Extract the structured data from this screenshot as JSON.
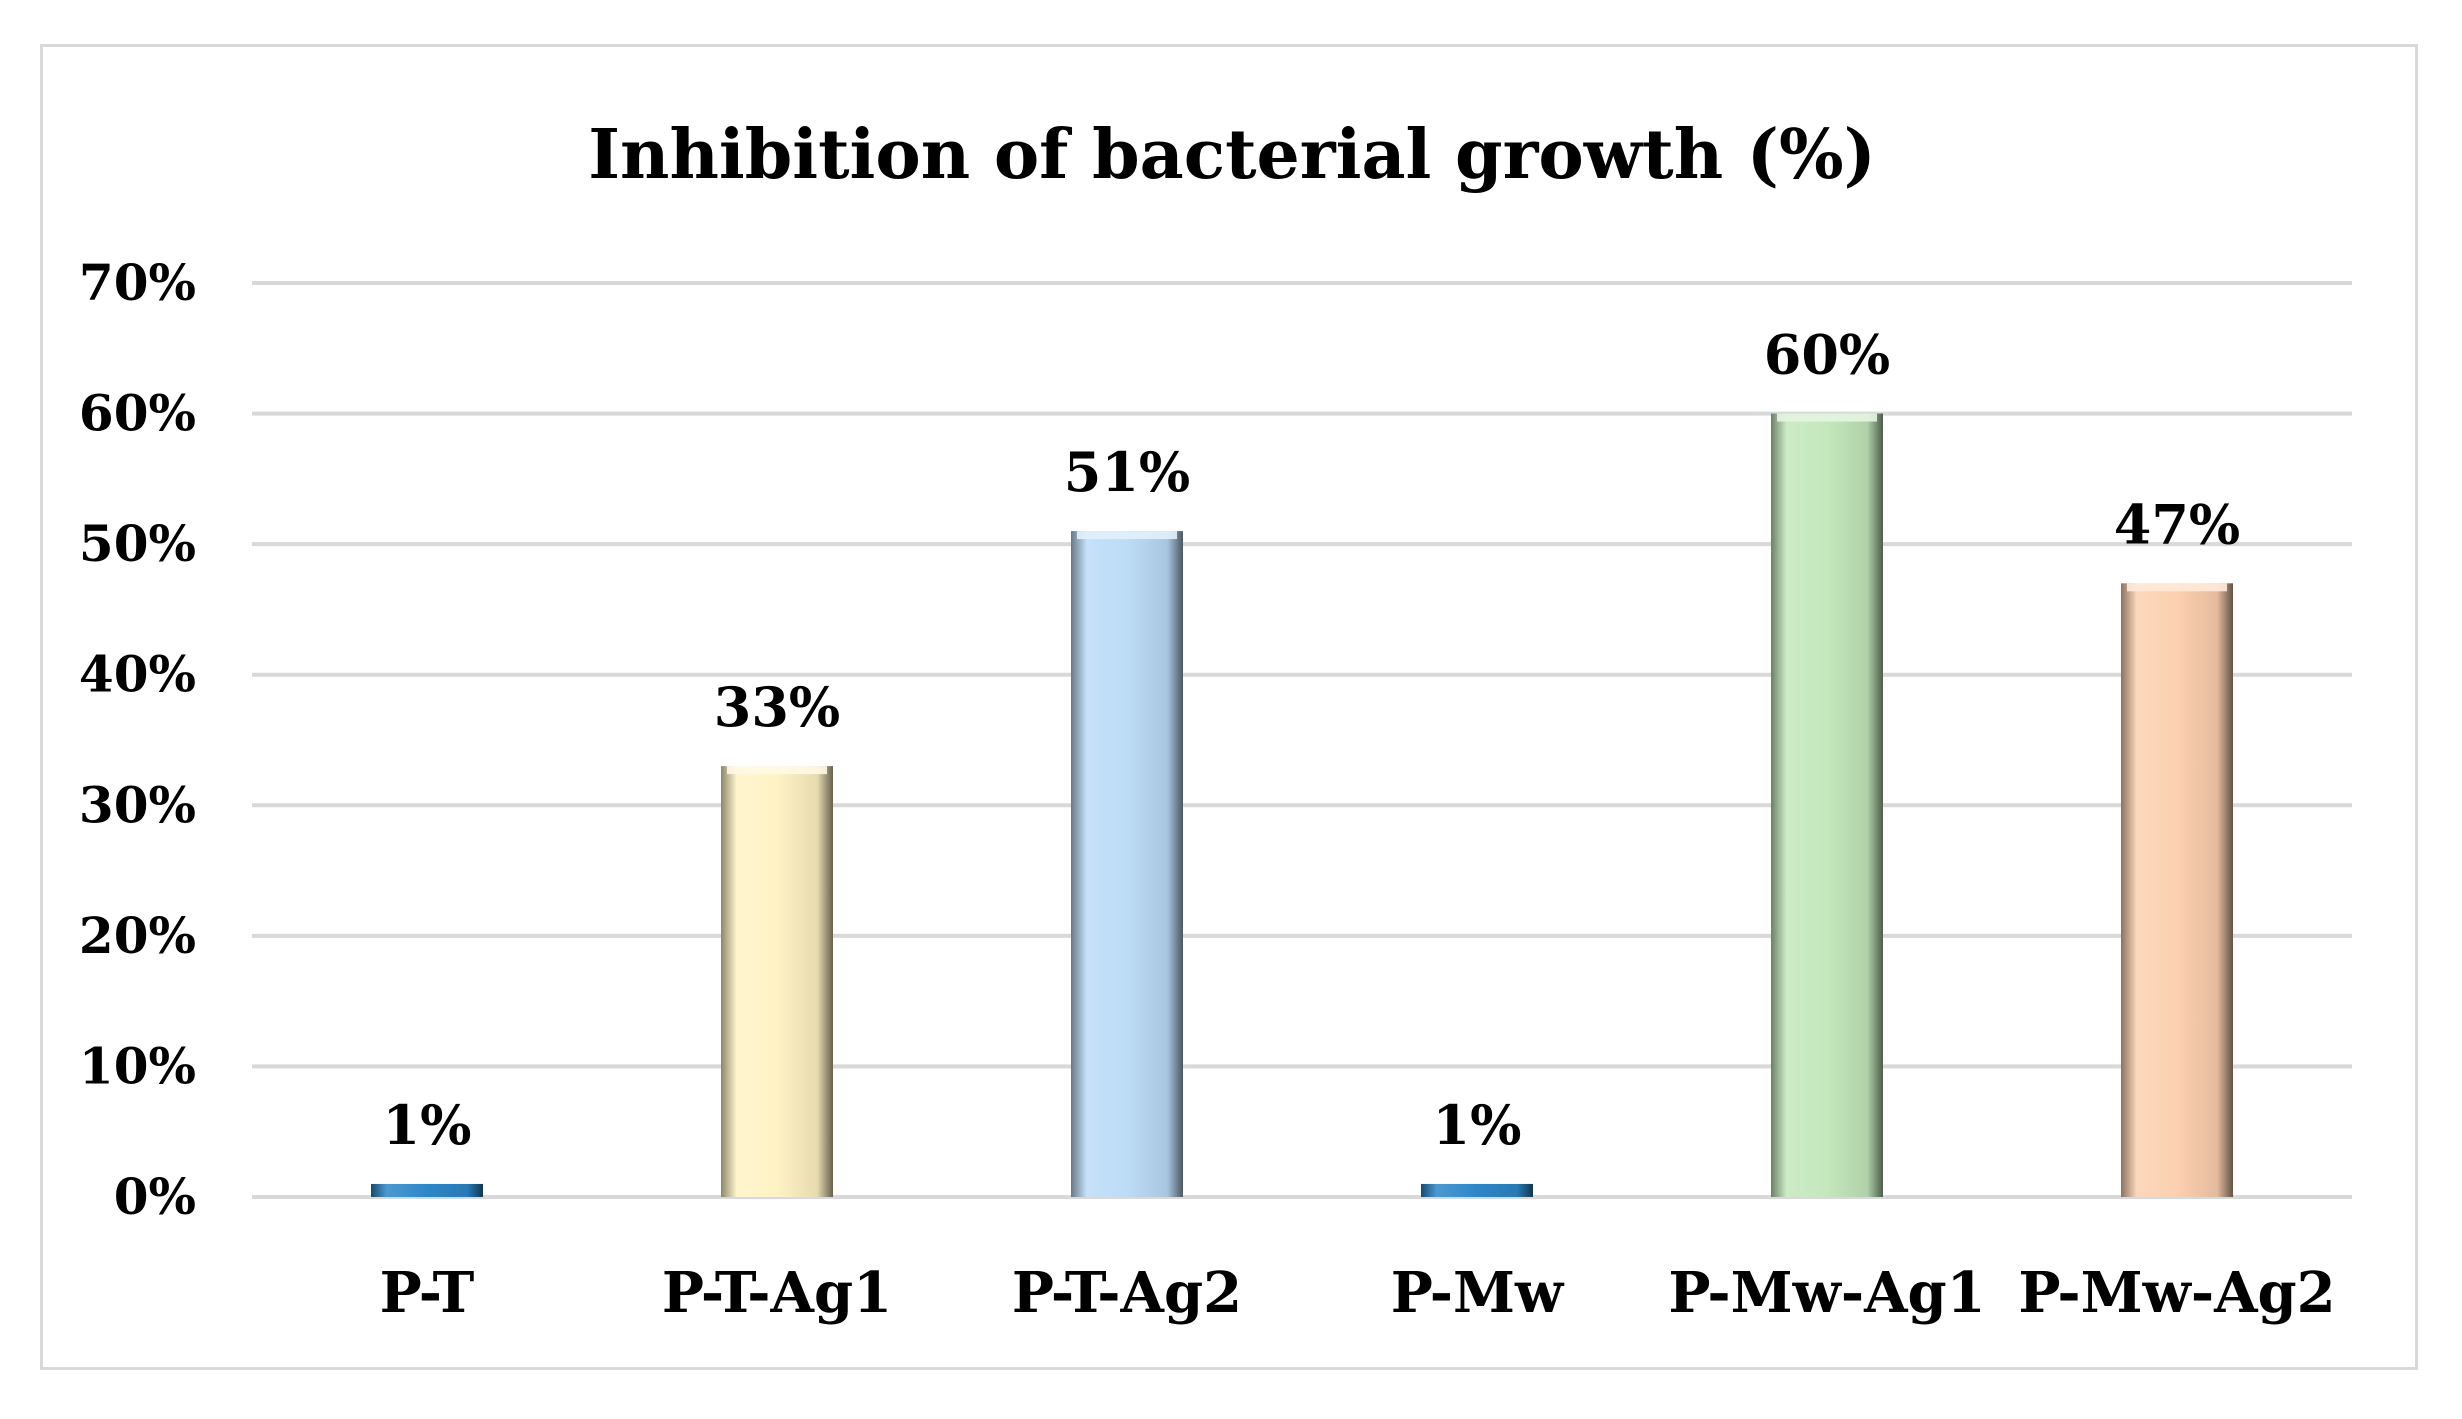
{
  "chart_data": {
    "type": "bar",
    "title": "Inhibition of bacterial growth (%)",
    "xlabel": "",
    "ylabel": "",
    "categories": [
      "P-T",
      "P-T-Ag1",
      "P-T-Ag2",
      "P-Mw",
      "P-Mw-Ag1",
      "P-Mw-Ag2"
    ],
    "values": [
      1,
      33,
      51,
      1,
      60,
      47
    ],
    "value_labels": [
      "1%",
      "33%",
      "51%",
      "1%",
      "60%",
      "47%"
    ],
    "ylim": [
      0,
      70
    ],
    "yticks": [
      0,
      10,
      20,
      30,
      40,
      50,
      60,
      70
    ],
    "ytick_labels": [
      "0%",
      "10%",
      "20%",
      "30%",
      "40%",
      "50%",
      "60%",
      "70%"
    ],
    "grid": true,
    "legend": "none",
    "bar_colors": [
      "#2e86c8",
      "#fff3c4",
      "#bcdcf7",
      "#2e86c8",
      "#c4e8bc",
      "#fcd0b0"
    ]
  }
}
